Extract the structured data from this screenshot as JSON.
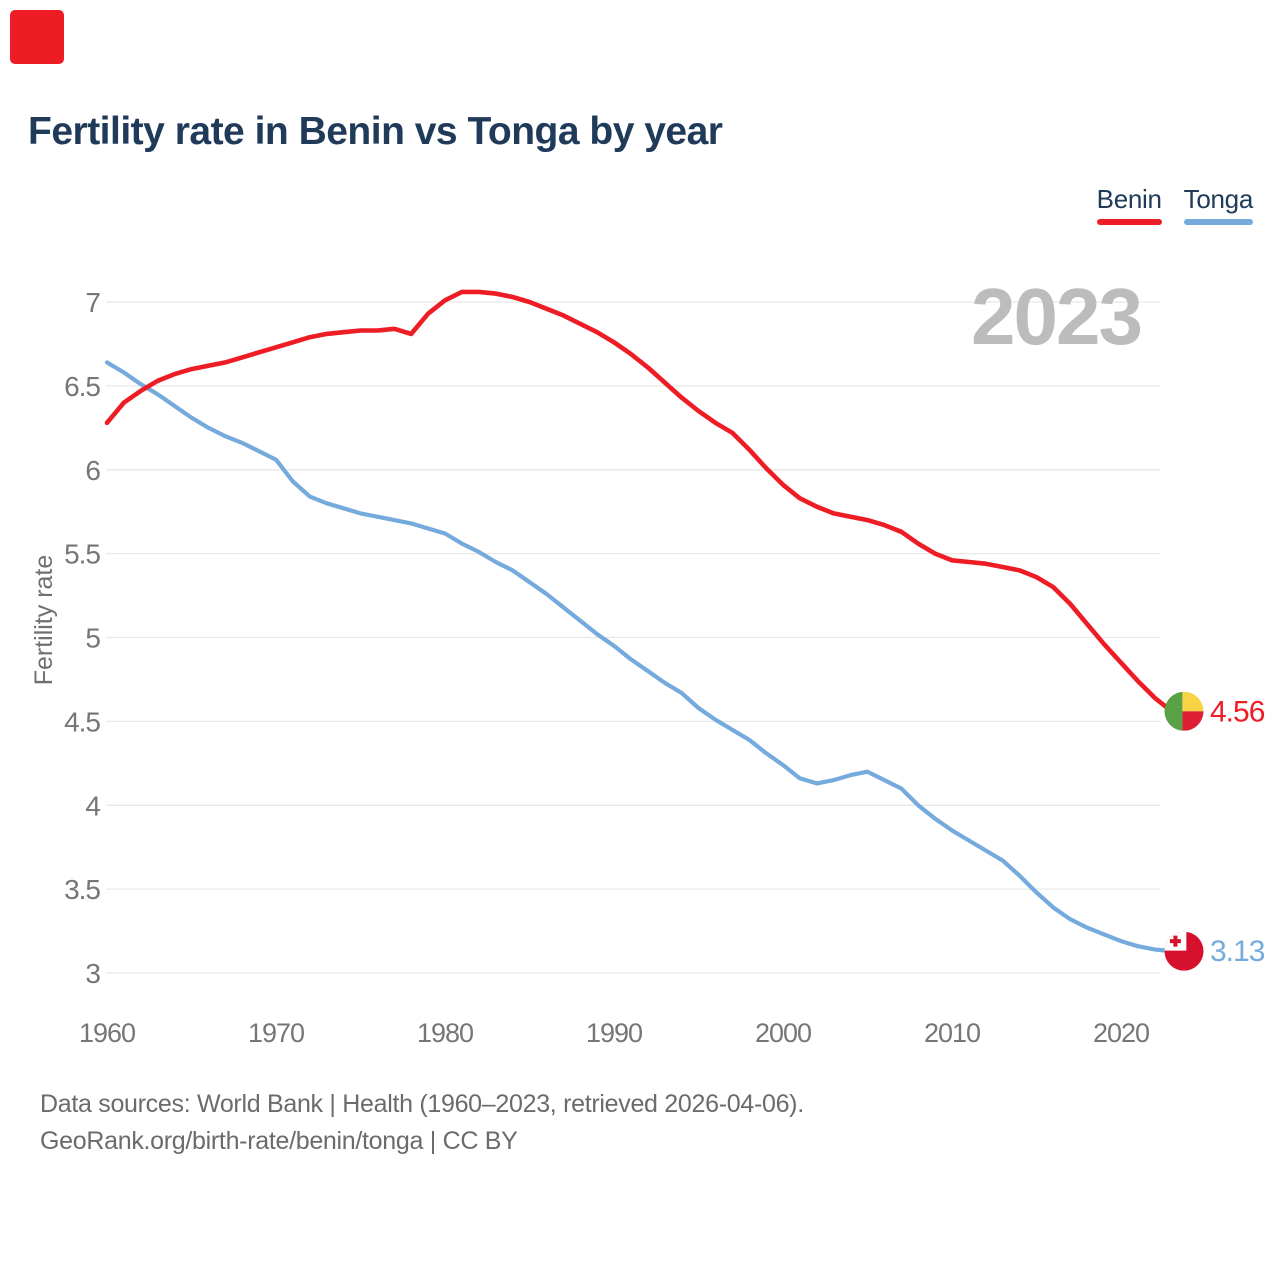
{
  "corner_marker": {
    "color": "#ee1c25"
  },
  "header": {
    "title": "Fertility rate in Benin vs Tonga by year"
  },
  "legend": {
    "items": [
      {
        "label": "Benin",
        "color": "#ee1d25"
      },
      {
        "label": "Tonga",
        "color": "#74aadc"
      }
    ]
  },
  "watermark": {
    "text": "2023"
  },
  "chart_data": {
    "type": "line",
    "title": "Fertility rate in Benin vs Tonga by year",
    "xlabel": "",
    "ylabel": "Fertility rate",
    "grid": "horizontal",
    "legend_position": "top-right",
    "ylim": [
      2.85,
      7.25
    ],
    "x_range": [
      1960,
      2023
    ],
    "yticks": [
      "7",
      "6.5",
      "6",
      "5.5",
      "5",
      "4.5",
      "4",
      "3.5",
      "3"
    ],
    "ytick_values": [
      7,
      6.5,
      6,
      5.5,
      5,
      4.5,
      4,
      3.5,
      3
    ],
    "xticks": [
      1960,
      1970,
      1980,
      1990,
      2000,
      2010,
      2020
    ],
    "years": [
      1960,
      1961,
      1962,
      1963,
      1964,
      1965,
      1966,
      1967,
      1968,
      1969,
      1970,
      1971,
      1972,
      1973,
      1974,
      1975,
      1976,
      1977,
      1978,
      1979,
      1980,
      1981,
      1982,
      1983,
      1984,
      1985,
      1986,
      1987,
      1988,
      1989,
      1990,
      1991,
      1992,
      1993,
      1994,
      1995,
      1996,
      1997,
      1998,
      1999,
      2000,
      2001,
      2002,
      2003,
      2004,
      2005,
      2006,
      2007,
      2008,
      2009,
      2010,
      2011,
      2012,
      2013,
      2014,
      2015,
      2016,
      2017,
      2018,
      2019,
      2020,
      2021,
      2022,
      2023
    ],
    "series": [
      {
        "name": "Tonga",
        "color": "#74aadc",
        "end_value": 3.13,
        "end_label": "3.13",
        "values": [
          6.64,
          6.58,
          6.51,
          6.45,
          6.38,
          6.31,
          6.25,
          6.2,
          6.16,
          6.11,
          6.06,
          5.93,
          5.84,
          5.8,
          5.77,
          5.74,
          5.72,
          5.7,
          5.68,
          5.65,
          5.62,
          5.56,
          5.51,
          5.45,
          5.4,
          5.33,
          5.26,
          5.18,
          5.1,
          5.02,
          4.95,
          4.87,
          4.8,
          4.73,
          4.67,
          4.58,
          4.51,
          4.45,
          4.39,
          4.31,
          4.24,
          4.16,
          4.13,
          4.15,
          4.18,
          4.2,
          4.15,
          4.1,
          4.0,
          3.92,
          3.85,
          3.79,
          3.73,
          3.67,
          3.58,
          3.48,
          3.39,
          3.32,
          3.27,
          3.23,
          3.19,
          3.16,
          3.14,
          3.13
        ]
      },
      {
        "name": "Benin",
        "color": "#ee1d25",
        "end_value": 4.56,
        "end_label": "4.56",
        "values": [
          6.28,
          6.4,
          6.47,
          6.53,
          6.57,
          6.6,
          6.62,
          6.64,
          6.67,
          6.7,
          6.73,
          6.76,
          6.79,
          6.81,
          6.82,
          6.83,
          6.83,
          6.84,
          6.81,
          6.93,
          7.01,
          7.06,
          7.06,
          7.05,
          7.03,
          7.0,
          6.96,
          6.92,
          6.87,
          6.82,
          6.76,
          6.69,
          6.61,
          6.52,
          6.43,
          6.35,
          6.28,
          6.22,
          6.12,
          6.01,
          5.91,
          5.83,
          5.78,
          5.74,
          5.72,
          5.7,
          5.67,
          5.63,
          5.56,
          5.5,
          5.46,
          5.45,
          5.44,
          5.42,
          5.4,
          5.36,
          5.3,
          5.2,
          5.08,
          4.96,
          4.85,
          4.74,
          4.64,
          4.56
        ]
      }
    ],
    "flags": {
      "benin": {
        "green": "#5aa045",
        "yellow": "#f8d344",
        "red": "#dc1f33"
      },
      "tonga": {
        "red": "#d5112d",
        "white": "#ffffff"
      }
    }
  },
  "footer": {
    "line1": "Data sources: World Bank | Health (1960–2023, retrieved 2026-04-06).",
    "line2": "GeoRank.org/birth-rate/benin/tonga | CC BY"
  }
}
